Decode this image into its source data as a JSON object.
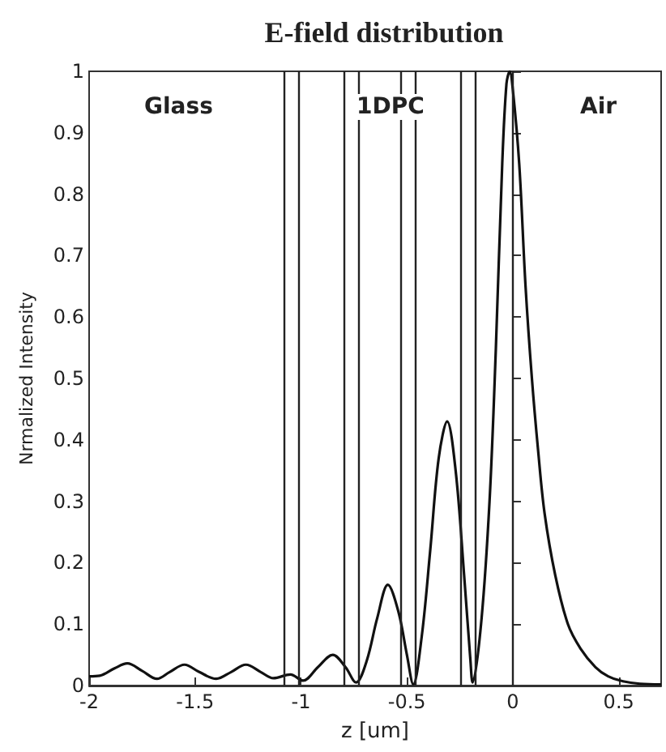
{
  "chart_data": {
    "type": "line",
    "title": "E-field distribution",
    "xlabel": "z [um]",
    "ylabel": "Nrmalized Intensity",
    "xlim": [
      -2,
      0.7
    ],
    "xticks": [
      -2,
      -1.5,
      -1,
      -0.5,
      0,
      0.5
    ],
    "ylim": [
      0,
      1
    ],
    "yticks": [
      0,
      0.1,
      0.2,
      0.3,
      0.4,
      0.5,
      0.6,
      0.7,
      0.8,
      0.9,
      1
    ],
    "line_style": "solid",
    "series": [
      {
        "color": "#111111",
        "x": [
          -2,
          -1.95,
          -1.88,
          -1.82,
          -1.75,
          -1.68,
          -1.62,
          -1.55,
          -1.48,
          -1.4,
          -1.33,
          -1.26,
          -1.19,
          -1.13,
          -1.05,
          -0.99,
          -0.92,
          -0.85,
          -0.79,
          -0.74,
          -0.69,
          -0.64,
          -0.59,
          -0.54,
          -0.5,
          -0.47,
          -0.43,
          -0.39,
          -0.35,
          -0.31,
          -0.27,
          -0.23,
          -0.2,
          -0.19,
          -0.15,
          -0.11,
          -0.08,
          -0.05,
          -0.03,
          -0.015,
          0,
          0.03,
          0.06,
          0.09,
          0.12,
          0.15,
          0.2,
          0.26,
          0.32,
          0.39,
          0.45,
          0.52,
          0.6,
          0.7
        ],
        "values": [
          0.015,
          0.016,
          0.028,
          0.036,
          0.024,
          0.011,
          0.022,
          0.034,
          0.022,
          0.011,
          0.022,
          0.034,
          0.022,
          0.012,
          0.018,
          0.008,
          0.03,
          0.05,
          0.03,
          0.005,
          0.04,
          0.11,
          0.164,
          0.12,
          0.05,
          0.002,
          0.08,
          0.22,
          0.37,
          0.43,
          0.35,
          0.18,
          0.04,
          0.005,
          0.1,
          0.3,
          0.55,
          0.85,
          0.98,
          1.0,
          0.97,
          0.85,
          0.65,
          0.5,
          0.38,
          0.28,
          0.18,
          0.1,
          0.06,
          0.03,
          0.015,
          0.007,
          0.003,
          0.002
        ]
      }
    ],
    "ref_lines": [
      {
        "axis": "x",
        "value": -1.08,
        "color": "#222222"
      },
      {
        "axis": "x",
        "value": -1.01,
        "color": "#222222"
      },
      {
        "axis": "x",
        "value": -0.8,
        "color": "#222222"
      },
      {
        "axis": "x",
        "value": -0.73,
        "color": "#222222"
      },
      {
        "axis": "x",
        "value": -0.53,
        "color": "#222222"
      },
      {
        "axis": "x",
        "value": -0.46,
        "color": "#222222"
      },
      {
        "axis": "x",
        "value": -0.25,
        "color": "#222222"
      },
      {
        "axis": "x",
        "value": -0.18,
        "color": "#222222"
      },
      {
        "axis": "x",
        "value": 0,
        "color": "#222222"
      }
    ],
    "annotations": [
      "Glass",
      "1DPC",
      "Air"
    ]
  }
}
